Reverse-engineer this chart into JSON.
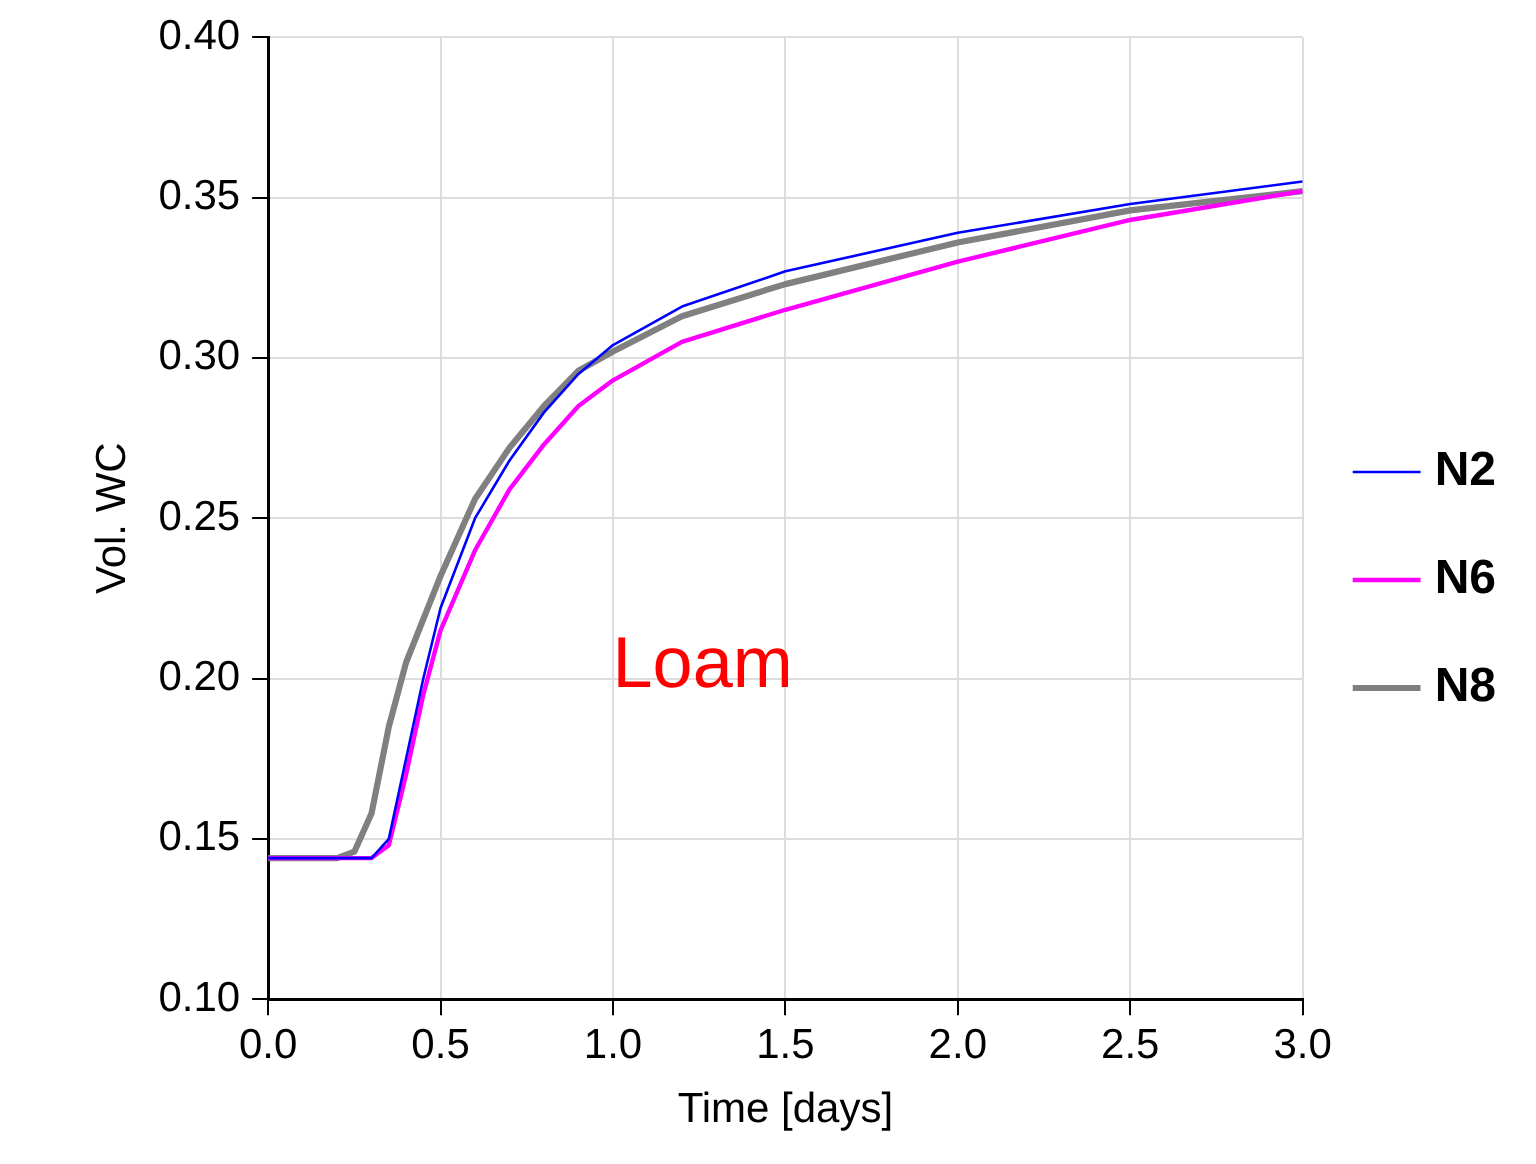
{
  "chart_data": {
    "type": "line",
    "xlabel": "Time [days]",
    "ylabel": "Vol. WC",
    "annotations": [
      "Loam"
    ],
    "xlim": [
      0,
      3
    ],
    "xticks": [
      {
        "value": 0,
        "label": "0.0"
      },
      {
        "value": 0.5,
        "label": "0.5"
      },
      {
        "value": 1,
        "label": "1.0"
      },
      {
        "value": 1.5,
        "label": "1.5"
      },
      {
        "value": 2,
        "label": "2.0"
      },
      {
        "value": 2.5,
        "label": "2.5"
      },
      {
        "value": 3,
        "label": "3.0"
      }
    ],
    "ylim": [
      0.1,
      0.4
    ],
    "yticks": [
      {
        "value": 0.1,
        "label": "0.10"
      },
      {
        "value": 0.15,
        "label": "0.15"
      },
      {
        "value": 0.2,
        "label": "0.20"
      },
      {
        "value": 0.25,
        "label": "0.25"
      },
      {
        "value": 0.3,
        "label": "0.30"
      },
      {
        "value": 0.35,
        "label": "0.35"
      },
      {
        "value": 0.4,
        "label": "0.40"
      }
    ],
    "grid": true,
    "legend": "right",
    "marker": "none",
    "line_style": "solid",
    "series": [
      {
        "name": "N2",
        "color": "#0000ff",
        "x": [
          0,
          0.3,
          0.35,
          0.4,
          0.45,
          0.5,
          0.6,
          0.7,
          0.8,
          0.9,
          1.0,
          1.2,
          1.5,
          2.0,
          2.5,
          3.0
        ],
        "values": [
          0.144,
          0.144,
          0.15,
          0.175,
          0.2,
          0.222,
          0.25,
          0.268,
          0.283,
          0.295,
          0.304,
          0.316,
          0.327,
          0.339,
          0.348,
          0.355
        ]
      },
      {
        "name": "N6",
        "color": "#ff00ff",
        "x": [
          0,
          0.3,
          0.35,
          0.4,
          0.45,
          0.5,
          0.6,
          0.7,
          0.8,
          0.9,
          1.0,
          1.2,
          1.5,
          2.0,
          2.5,
          3.0
        ],
        "values": [
          0.144,
          0.144,
          0.148,
          0.17,
          0.195,
          0.215,
          0.24,
          0.259,
          0.273,
          0.285,
          0.293,
          0.305,
          0.315,
          0.33,
          0.343,
          0.352
        ]
      },
      {
        "name": "N8",
        "color": "#808080",
        "x": [
          0,
          0.2,
          0.25,
          0.3,
          0.35,
          0.4,
          0.5,
          0.6,
          0.7,
          0.8,
          0.9,
          1.0,
          1.2,
          1.5,
          2.0,
          2.5,
          3.0
        ],
        "values": [
          0.144,
          0.144,
          0.146,
          0.158,
          0.185,
          0.205,
          0.232,
          0.256,
          0.272,
          0.285,
          0.296,
          0.302,
          0.313,
          0.323,
          0.336,
          0.346,
          0.352
        ]
      }
    ]
  }
}
